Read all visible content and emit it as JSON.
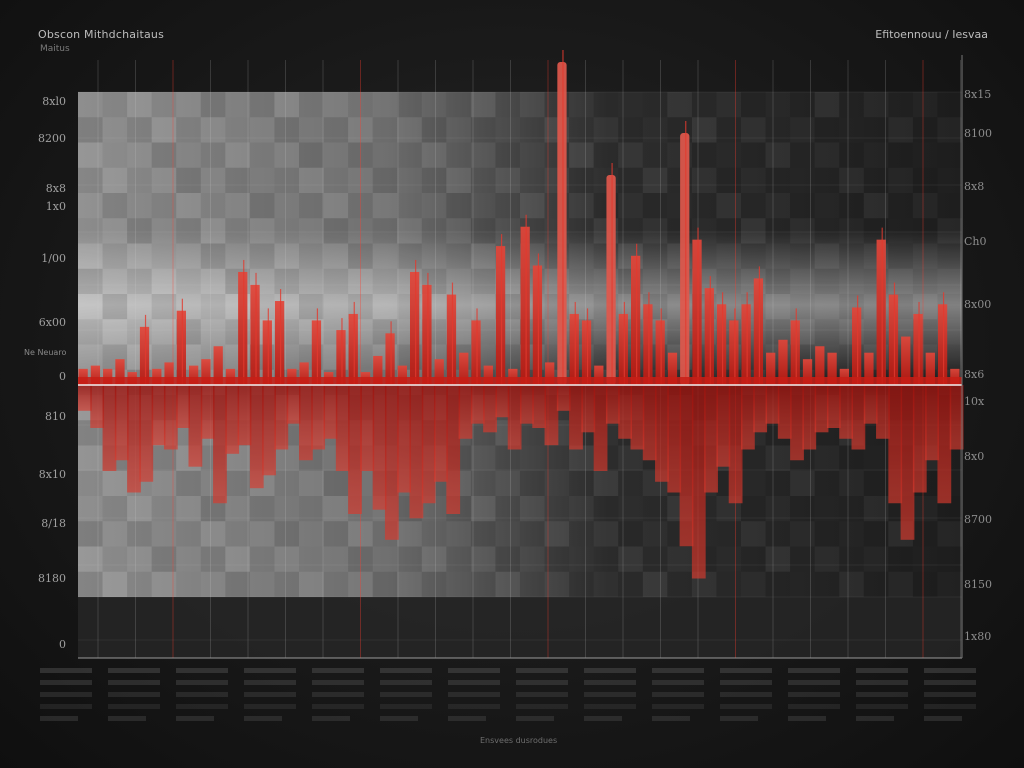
{
  "header": {
    "title_left": "Obscon Mithdchaitaus",
    "subtitle_left": "Maitus",
    "title_right": "Efitoennouu / Iesvaa",
    "side_label": "Ne Neuaro"
  },
  "footer": {
    "caption": "Ensvees dusrodues"
  },
  "colors": {
    "background": "#141414",
    "accent_red": "#d8241c",
    "bright_red": "#f06a5e",
    "baseline": "#e8e8e8"
  },
  "chart_data": {
    "type": "bar",
    "title": "Obscon Mithdchaitaus",
    "subtitle": "Maitus",
    "orientation": "diverging about zero baseline",
    "left_axis_ticks": [
      "8xl0",
      "8200",
      "8x8",
      "1x0",
      "1/00",
      "6x00",
      "0",
      "810",
      "8x10",
      "8/18",
      "8180",
      "0"
    ],
    "right_axis_ticks": [
      "8x15",
      "8100",
      "8x8",
      "Ch0",
      "8x00",
      "8x6",
      "10x",
      "8x0",
      "8700",
      "8150",
      "1x80"
    ],
    "grid": true,
    "legend": "none",
    "ylim": [
      -1,
      1
    ],
    "positive_peaks": [
      0.05,
      0.06,
      0.05,
      0.08,
      0.04,
      0.18,
      0.05,
      0.07,
      0.23,
      0.06,
      0.08,
      0.12,
      0.05,
      0.35,
      0.31,
      0.2,
      0.26,
      0.05,
      0.07,
      0.2,
      0.04,
      0.17,
      0.22,
      0.04,
      0.09,
      0.16,
      0.06,
      0.35,
      0.31,
      0.08,
      0.28,
      0.1,
      0.2,
      0.06,
      0.43,
      0.05,
      0.49,
      0.37,
      0.07,
      1.0,
      0.22,
      0.2,
      0.06,
      0.65,
      0.22,
      0.4,
      0.25,
      0.2,
      0.1,
      0.78,
      0.45,
      0.3,
      0.25,
      0.2,
      0.25,
      0.33,
      0.1,
      0.14,
      0.2,
      0.08,
      0.12,
      0.1,
      0.05,
      0.24,
      0.1,
      0.45,
      0.28,
      0.15,
      0.22,
      0.1,
      0.25,
      0.05
    ],
    "negative_troughs": [
      0.12,
      0.2,
      0.4,
      0.35,
      0.5,
      0.45,
      0.28,
      0.3,
      0.2,
      0.38,
      0.25,
      0.55,
      0.32,
      0.28,
      0.48,
      0.42,
      0.3,
      0.18,
      0.35,
      0.3,
      0.25,
      0.4,
      0.6,
      0.4,
      0.58,
      0.72,
      0.5,
      0.62,
      0.55,
      0.45,
      0.6,
      0.25,
      0.18,
      0.22,
      0.15,
      0.3,
      0.18,
      0.2,
      0.28,
      0.12,
      0.3,
      0.22,
      0.4,
      0.18,
      0.25,
      0.3,
      0.35,
      0.45,
      0.5,
      0.75,
      0.9,
      0.5,
      0.38,
      0.55,
      0.3,
      0.22,
      0.18,
      0.25,
      0.35,
      0.3,
      0.22,
      0.2,
      0.25,
      0.3,
      0.18,
      0.25,
      0.55,
      0.72,
      0.5,
      0.35,
      0.55,
      0.3
    ]
  }
}
